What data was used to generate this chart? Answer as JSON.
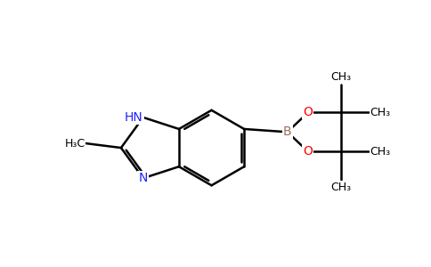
{
  "background_color": "#ffffff",
  "bond_color": "#000000",
  "bond_width": 1.8,
  "atom_colors": {
    "N": "#2020ff",
    "O": "#ff0000",
    "B": "#9b6b5a",
    "C": "#000000"
  },
  "font_size_atom": 10,
  "font_size_label": 9,
  "xlim": [
    -3.0,
    5.5
  ],
  "ylim": [
    -2.5,
    2.5
  ]
}
